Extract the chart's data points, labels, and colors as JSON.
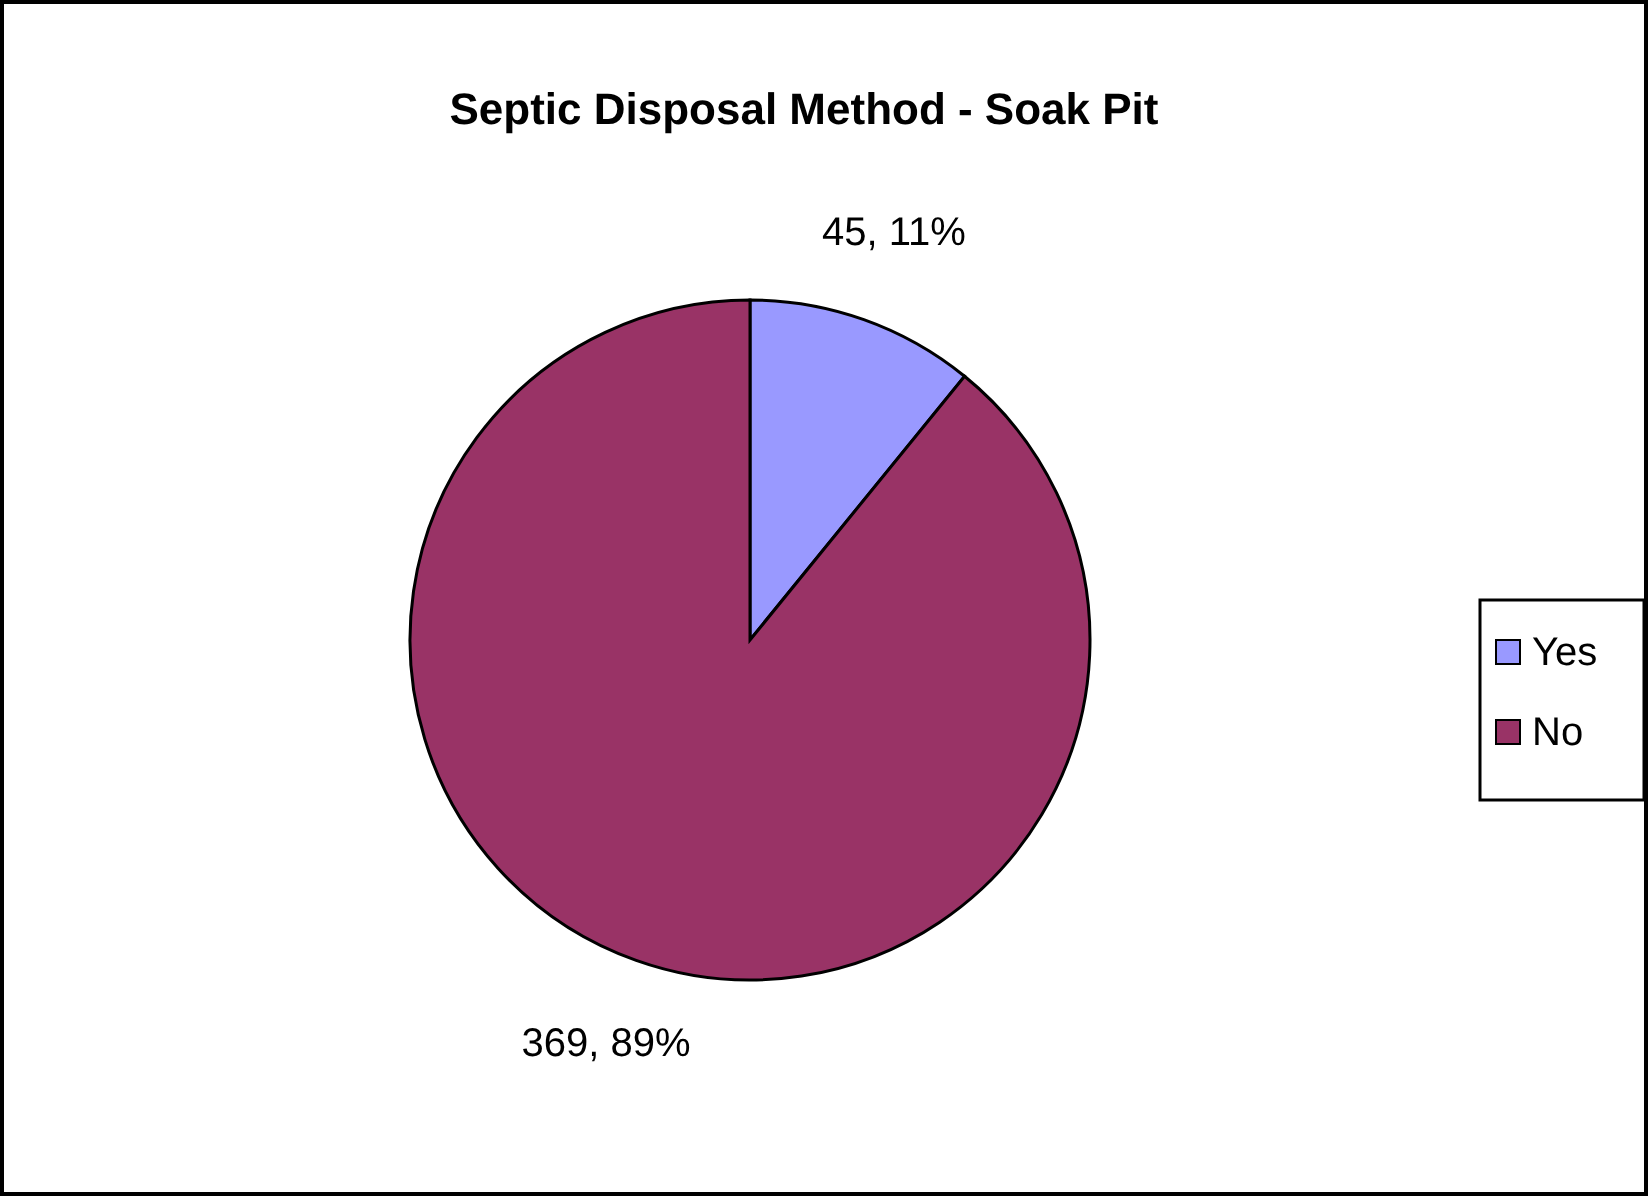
{
  "chart_data": {
    "type": "pie",
    "title": "Septic Disposal Method - Soak Pit",
    "categories": [
      "Yes",
      "No"
    ],
    "values": [
      45,
      369
    ],
    "colors": [
      "#9999ff",
      "#993366"
    ],
    "value_labels": [
      "45, 11%",
      "369, 89%"
    ],
    "legend": "right"
  }
}
